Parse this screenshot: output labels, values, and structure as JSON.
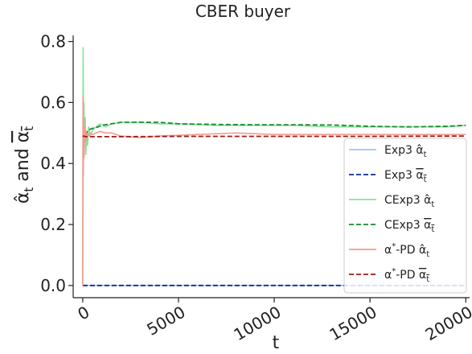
{
  "chart_data": {
    "type": "line",
    "title": "CBER buyer",
    "xlabel": "t",
    "ylabel_main": "α̂",
    "ylabel_sub": "t",
    "ylabel_mid": " and ",
    "xlim": [
      -500,
      20200
    ],
    "ylim": [
      -0.04,
      0.82
    ],
    "xticks": [
      0,
      5000,
      10000,
      15000,
      20000
    ],
    "xtick_labels": [
      "0",
      "5000",
      "10000",
      "15000",
      "20000"
    ],
    "yticks": [
      0.0,
      0.2,
      0.4,
      0.6,
      0.8
    ],
    "ytick_labels": [
      "0.0",
      "0.2",
      "0.4",
      "0.6",
      "0.8"
    ],
    "grid": false,
    "legend_position": "center-right",
    "series": [
      {
        "name_prefix": "Exp3 ",
        "name_symbol": "α̂",
        "name_sub": "t",
        "color": "#a1c4f0",
        "dash": "solid",
        "x": [
          0,
          20000
        ],
        "y": [
          0.0,
          0.0
        ]
      },
      {
        "name_prefix": "Exp3 ",
        "name_symbol": "α",
        "name_overline": true,
        "name_sub": "t",
        "color": "#0d2a9c",
        "dash": "dashed",
        "x": [
          0,
          20000
        ],
        "y": [
          0.0,
          0.0
        ]
      },
      {
        "name_prefix": "CExp3 ",
        "name_symbol": "α̂",
        "name_sub": "t",
        "color": "#86e29b",
        "dash": "solid",
        "x": [
          0,
          20,
          40,
          60,
          80,
          100,
          130,
          160,
          200,
          250,
          300,
          400,
          500,
          700,
          900,
          1200,
          1500,
          2000,
          3000,
          4000,
          5000,
          7000,
          9000,
          11000,
          13000,
          15000,
          17000,
          19000,
          20000
        ],
        "y": [
          0.0,
          0.78,
          0.45,
          0.6,
          0.5,
          0.47,
          0.55,
          0.43,
          0.5,
          0.46,
          0.52,
          0.49,
          0.51,
          0.52,
          0.53,
          0.52,
          0.53,
          0.535,
          0.535,
          0.53,
          0.53,
          0.525,
          0.525,
          0.525,
          0.52,
          0.52,
          0.52,
          0.52,
          0.525
        ]
      },
      {
        "name_prefix": "CExp3 ",
        "name_symbol": "α",
        "name_overline": true,
        "name_sub": "t",
        "color": "#1a8a2e",
        "dash": "dashed",
        "x": [
          0,
          100,
          200,
          300,
          500,
          800,
          1000,
          1500,
          2000,
          3000,
          4000,
          5000,
          7000,
          9000,
          11000,
          13000,
          15000,
          17000,
          19000,
          20000
        ],
        "y": [
          0.47,
          0.48,
          0.5,
          0.51,
          0.515,
          0.52,
          0.525,
          0.53,
          0.535,
          0.535,
          0.535,
          0.53,
          0.528,
          0.527,
          0.527,
          0.526,
          0.522,
          0.52,
          0.522,
          0.525
        ]
      },
      {
        "name_prefix": "α",
        "name_sup": "*",
        "name_middle": "-PD ",
        "name_symbol": "α̂",
        "name_sub": "t",
        "color": "#f49a8e",
        "dash": "solid",
        "x": [
          0,
          15,
          30,
          50,
          70,
          90,
          120,
          150,
          200,
          250,
          300,
          400,
          500,
          700,
          900,
          1200,
          1500,
          2000,
          3000,
          4000,
          6000,
          8000,
          10000,
          12000,
          14000,
          16000,
          18000,
          20000
        ],
        "y": [
          0.0,
          0.62,
          0.36,
          0.55,
          0.42,
          0.52,
          0.47,
          0.51,
          0.48,
          0.5,
          0.49,
          0.5,
          0.495,
          0.5,
          0.505,
          0.5,
          0.5,
          0.49,
          0.485,
          0.49,
          0.495,
          0.5,
          0.495,
          0.495,
          0.495,
          0.495,
          0.495,
          0.495
        ]
      },
      {
        "name_prefix": "α",
        "name_sup": "*",
        "name_middle": "-PD ",
        "name_symbol": "α",
        "name_overline": true,
        "name_sub": "t",
        "color": "#a01818",
        "dash": "dashed",
        "x": [
          0,
          200,
          500,
          1000,
          2000,
          5000,
          10000,
          15000,
          20000
        ],
        "y": [
          0.49,
          0.488,
          0.488,
          0.488,
          0.488,
          0.489,
          0.489,
          0.489,
          0.49
        ]
      }
    ]
  }
}
